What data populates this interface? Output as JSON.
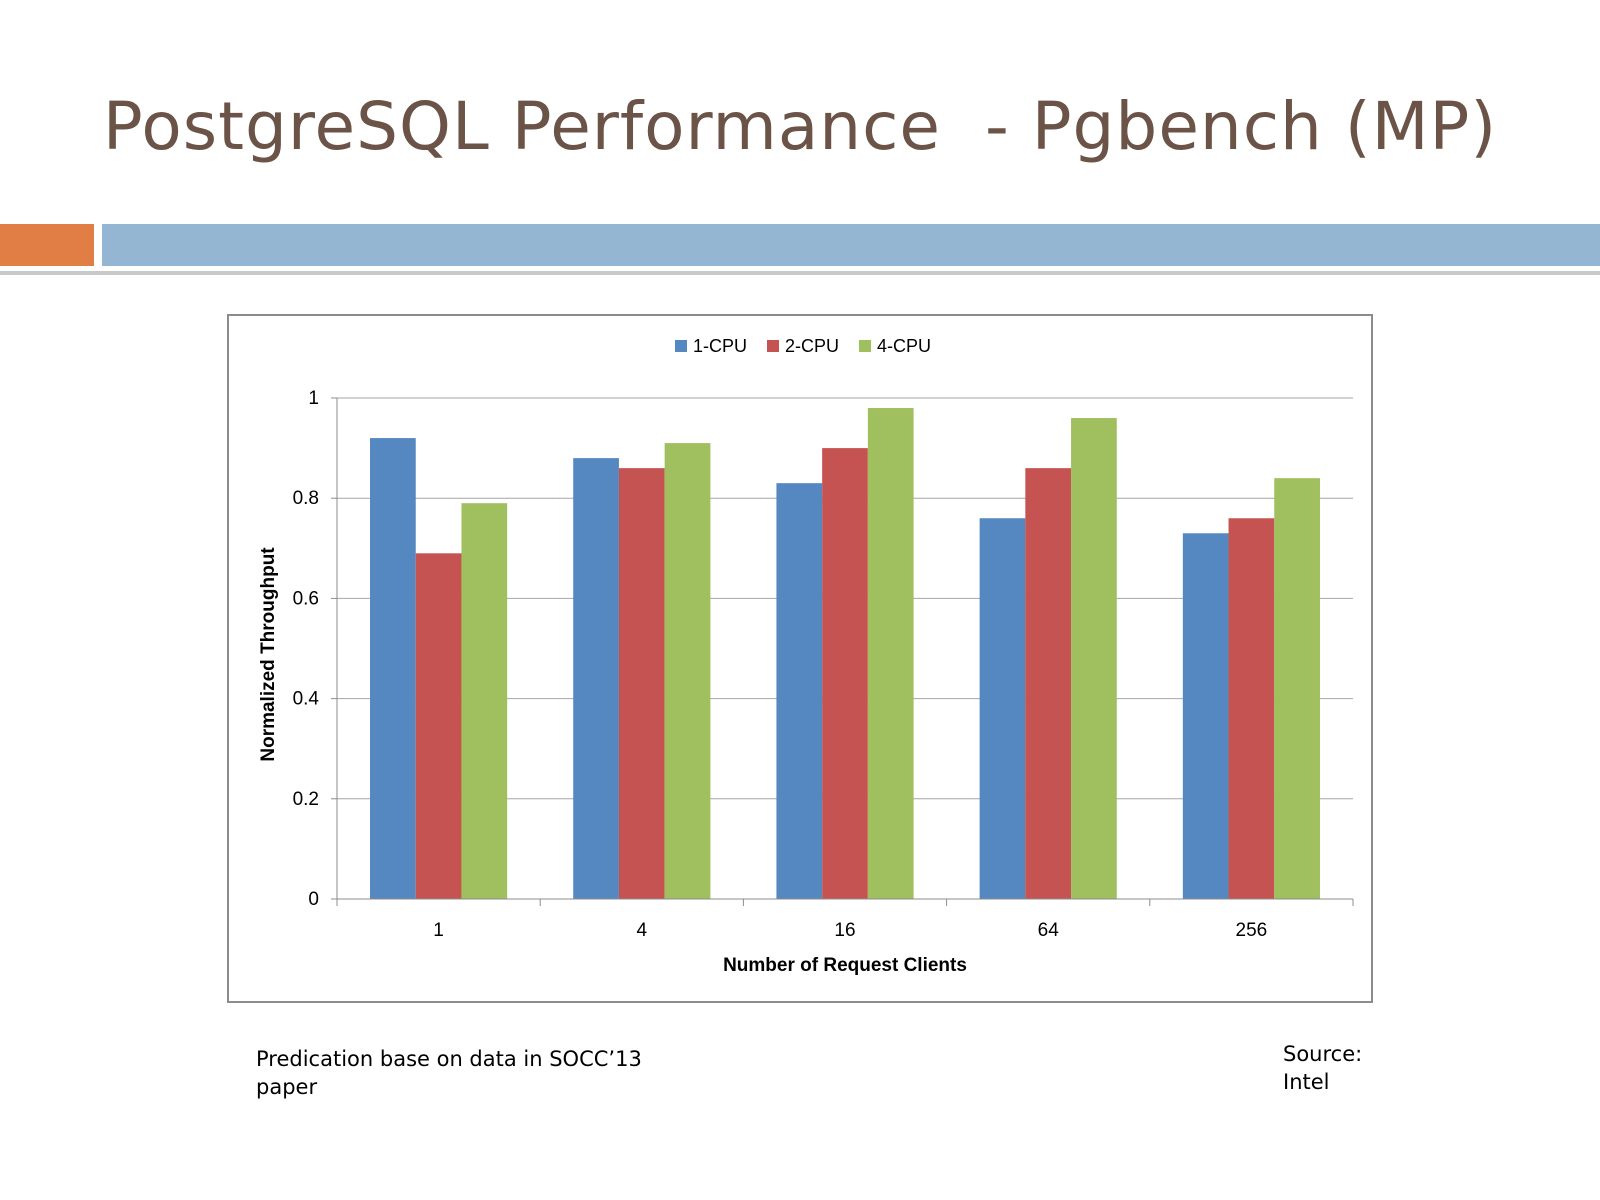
{
  "slide": {
    "title": "PostgreSQL Performance  - Pgbench (MP)",
    "footnote": "Predication base on data in SOCC’13 paper",
    "source_label": "Source:",
    "source_value": "Intel"
  },
  "colors": {
    "title": "#6b5447",
    "accent_orange": "#e07e46",
    "accent_blue": "#95b6d2"
  },
  "chart_data": {
    "type": "bar",
    "title": "",
    "xlabel": "Number  of Request Clients",
    "ylabel": "Normalized Throughput",
    "categories": [
      "1",
      "4",
      "16",
      "64",
      "256"
    ],
    "series": [
      {
        "name": "1-CPU",
        "color": "#5587c0",
        "values": [
          0.92,
          0.88,
          0.83,
          0.76,
          0.73
        ]
      },
      {
        "name": "2-CPU",
        "color": "#c45352",
        "values": [
          0.69,
          0.86,
          0.9,
          0.86,
          0.76
        ]
      },
      {
        "name": "4-CPU",
        "color": "#a0bf5e",
        "values": [
          0.79,
          0.91,
          0.98,
          0.96,
          0.84
        ]
      }
    ],
    "ylim": [
      0,
      1
    ],
    "yticks": [
      "0",
      "0.2",
      "0.4",
      "0.6",
      "0.8",
      "1"
    ],
    "grid": true,
    "legend_position": "top-center"
  }
}
